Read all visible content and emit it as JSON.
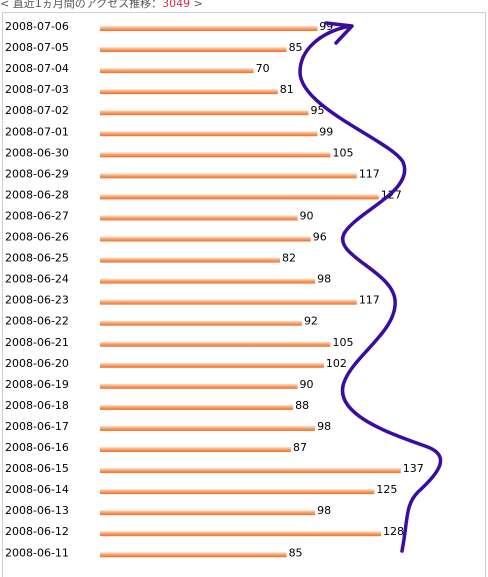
{
  "header": {
    "prefix": "< 直近1ヵ月間のアクセス推移：",
    "total": "3049",
    "suffix": " >"
  },
  "colors": {
    "bar_top": "#fbe3cf",
    "bar_mid": "#fb9f66",
    "bar_bottom": "#e8702d",
    "annotation": "#3a0ca3",
    "total": "#d42f52"
  },
  "chart_data": {
    "type": "bar",
    "orientation": "horizontal",
    "categories": [
      "2008-07-06",
      "2008-07-05",
      "2008-07-04",
      "2008-07-03",
      "2008-07-02",
      "2008-07-01",
      "2008-06-30",
      "2008-06-29",
      "2008-06-28",
      "2008-06-27",
      "2008-06-26",
      "2008-06-25",
      "2008-06-24",
      "2008-06-23",
      "2008-06-22",
      "2008-06-21",
      "2008-06-20",
      "2008-06-19",
      "2008-06-18",
      "2008-06-17",
      "2008-06-16",
      "2008-06-15",
      "2008-06-14",
      "2008-06-13",
      "2008-06-12",
      "2008-06-11"
    ],
    "values": [
      99,
      85,
      70,
      81,
      95,
      99,
      105,
      117,
      127,
      90,
      96,
      82,
      98,
      117,
      92,
      105,
      102,
      90,
      88,
      98,
      87,
      137,
      125,
      98,
      128,
      85
    ],
    "title": "",
    "xlabel": "",
    "ylabel": "",
    "data_labels": true,
    "grid": false,
    "annotation": "hand-drawn wavy arrow pointing upward"
  }
}
